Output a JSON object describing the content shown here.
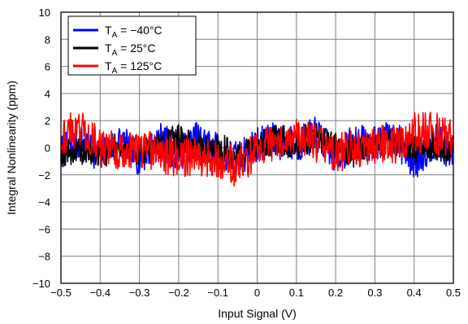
{
  "chart_data": {
    "type": "line",
    "xlabel": "Input Signal (V)",
    "ylabel": "Integral Nonlinearity (ppm)",
    "xlim": [
      -0.5,
      0.5
    ],
    "ylim": [
      -10,
      10
    ],
    "x_ticks": [
      -0.5,
      -0.4,
      -0.3,
      -0.2,
      -0.1,
      0,
      0.1,
      0.2,
      0.3,
      0.4,
      0.5
    ],
    "y_ticks": [
      -10,
      -8,
      -6,
      -4,
      -2,
      0,
      2,
      4,
      6,
      8,
      10
    ],
    "x_tick_labels": [
      "−0.5",
      "−0.4",
      "−0.3",
      "−0.2",
      "−0.1",
      "0",
      "0.1",
      "0.2",
      "0.3",
      "0.4",
      "0.5"
    ],
    "y_tick_labels": [
      "−10",
      "−8",
      "−6",
      "−4",
      "−2",
      "0",
      "2",
      "4",
      "6",
      "8",
      "10"
    ],
    "grid": true,
    "legend_position": "top-left",
    "series": [
      {
        "name": "T_A = −40°C",
        "legend_main": "T",
        "legend_sub": "A",
        "legend_rest": " = −40°C",
        "color": "#0000ff",
        "x": [
          -0.5,
          -0.45,
          -0.4,
          -0.35,
          -0.3,
          -0.25,
          -0.2,
          -0.15,
          -0.1,
          -0.05,
          0,
          0.05,
          0.1,
          0.15,
          0.2,
          0.25,
          0.3,
          0.35,
          0.4,
          0.45,
          0.5
        ],
        "y": [
          -0.3,
          0.4,
          -0.6,
          0.5,
          -0.8,
          0.6,
          -0.4,
          0.7,
          -0.2,
          -0.9,
          0.3,
          0.5,
          0.2,
          1.0,
          -0.6,
          0.4,
          0.3,
          0.8,
          -0.9,
          0.5,
          -0.4
        ],
        "amplitude": [
          1.3,
          1.3,
          1.2,
          1.3,
          1.3,
          1.4,
          1.4,
          1.3,
          1.3,
          1.4,
          1.3,
          1.4,
          1.4,
          1.3,
          1.4,
          1.4,
          1.3,
          1.3,
          1.6,
          1.4,
          1.3
        ]
      },
      {
        "name": "T_A = 25°C",
        "legend_main": "T",
        "legend_sub": "A",
        "legend_rest": " = 25°C",
        "color": "#000000",
        "x": [
          -0.5,
          -0.45,
          -0.4,
          -0.35,
          -0.3,
          -0.25,
          -0.2,
          -0.15,
          -0.1,
          -0.05,
          0,
          0.05,
          0.1,
          0.15,
          0.2,
          0.25,
          0.3,
          0.35,
          0.4,
          0.45,
          0.5
        ],
        "y": [
          -0.4,
          -0.3,
          -0.5,
          0.2,
          -0.3,
          0.1,
          0.6,
          -0.2,
          0.0,
          -0.6,
          0.1,
          0.6,
          0.4,
          0.8,
          0.2,
          -0.3,
          0.3,
          0.6,
          -0.2,
          0.2,
          -0.2
        ],
        "amplitude": [
          1.0,
          1.0,
          1.0,
          1.0,
          1.1,
          1.1,
          1.2,
          1.1,
          1.1,
          1.2,
          1.1,
          1.1,
          1.2,
          1.1,
          1.1,
          1.2,
          1.1,
          1.1,
          1.2,
          1.2,
          1.1
        ]
      },
      {
        "name": "T_A = 125°C",
        "legend_main": "T",
        "legend_sub": "A",
        "legend_rest": " = 125°C",
        "color": "#ff0000",
        "x": [
          -0.5,
          -0.45,
          -0.4,
          -0.35,
          -0.3,
          -0.25,
          -0.2,
          -0.15,
          -0.1,
          -0.05,
          0,
          0.05,
          0.1,
          0.15,
          0.2,
          0.25,
          0.3,
          0.35,
          0.4,
          0.45,
          0.5
        ],
        "y": [
          0.8,
          1.6,
          0.0,
          -0.2,
          -0.1,
          -0.3,
          -0.8,
          -0.5,
          -1.0,
          -1.4,
          -0.1,
          0.4,
          0.9,
          0.3,
          -0.4,
          -0.1,
          0.2,
          0.3,
          1.0,
          1.1,
          0.5
        ],
        "amplitude": [
          1.4,
          1.6,
          1.3,
          1.4,
          1.4,
          1.5,
          1.5,
          1.5,
          1.5,
          1.6,
          1.4,
          1.4,
          1.3,
          1.4,
          1.5,
          1.4,
          1.4,
          1.5,
          1.6,
          1.6,
          1.5
        ]
      }
    ]
  }
}
